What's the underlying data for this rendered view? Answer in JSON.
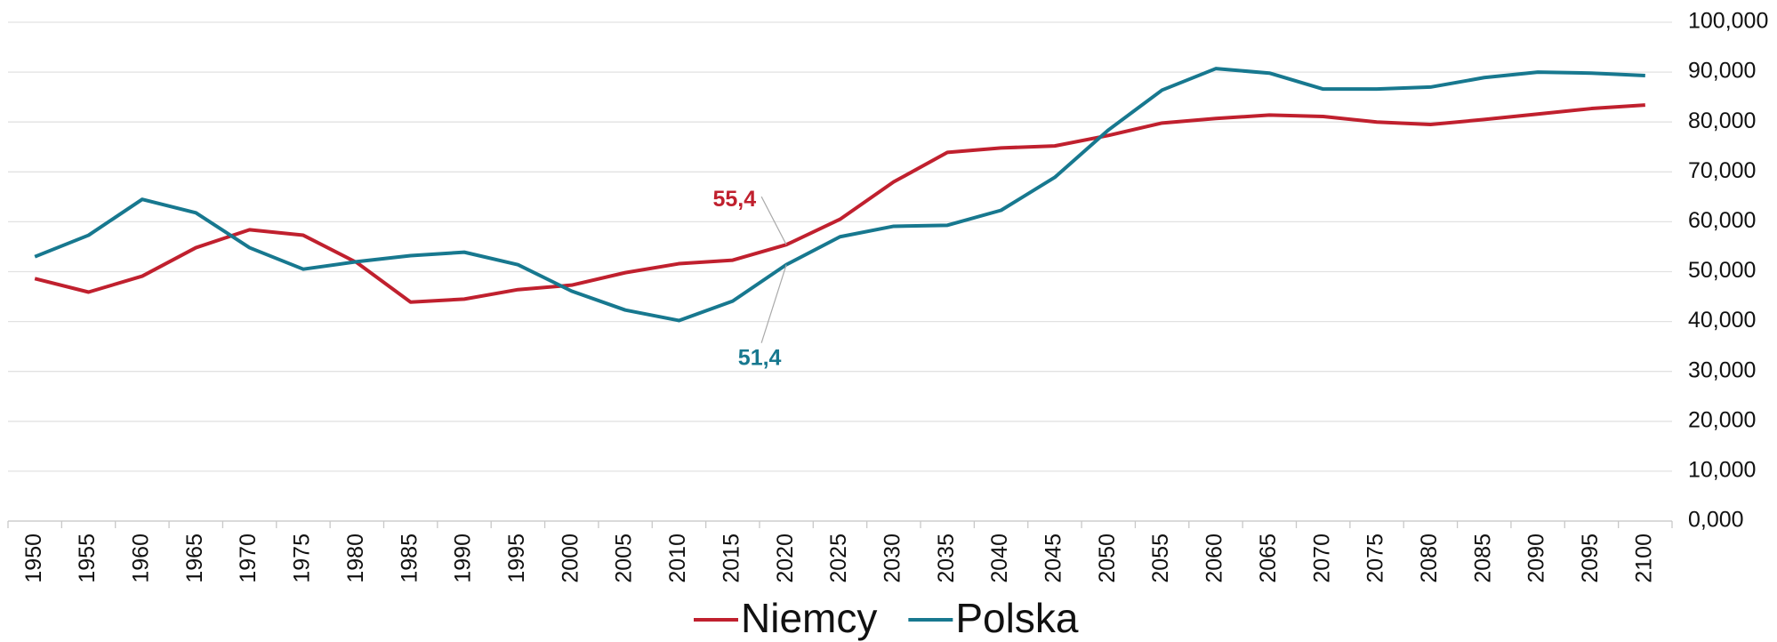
{
  "chart_data": {
    "type": "line",
    "categories": [
      1950,
      1955,
      1960,
      1965,
      1970,
      1975,
      1980,
      1985,
      1990,
      1995,
      2000,
      2005,
      2010,
      2015,
      2020,
      2025,
      2030,
      2035,
      2040,
      2045,
      2050,
      2055,
      2060,
      2065,
      2070,
      2075,
      2080,
      2085,
      2090,
      2095,
      2100
    ],
    "series": [
      {
        "name": "Niemcy",
        "color": "#c0202e",
        "values": [
          48.6,
          45.9,
          49.1,
          54.8,
          58.4,
          57.3,
          51.8,
          43.9,
          44.5,
          46.4,
          47.3,
          49.8,
          51.6,
          52.3,
          55.4,
          60.5,
          68.0,
          73.9,
          74.8,
          75.2,
          77.3,
          79.8,
          80.7,
          81.4,
          81.1,
          80.0,
          79.5,
          80.5,
          81.6,
          82.7,
          83.4
        ],
        "annotations": [
          {
            "index": 14,
            "value_label": "55,4"
          }
        ]
      },
      {
        "name": "Polska",
        "color": "#17788f",
        "values": [
          53.0,
          57.3,
          64.5,
          61.8,
          54.8,
          50.5,
          52.0,
          53.2,
          53.9,
          51.4,
          46.1,
          42.3,
          40.2,
          44.1,
          51.4,
          57.0,
          59.1,
          59.3,
          62.3,
          68.9,
          78.4,
          86.4,
          90.7,
          89.8,
          86.6,
          86.6,
          87.0,
          88.9,
          90.0,
          89.8,
          89.3
        ],
        "annotations": [
          {
            "index": 14,
            "value_label": "51,4"
          }
        ]
      }
    ],
    "ylim": [
      0,
      100
    ],
    "yticks": [
      {
        "value": 0,
        "label": "0,000"
      },
      {
        "value": 10,
        "label": "10,000"
      },
      {
        "value": 20,
        "label": "20,000"
      },
      {
        "value": 30,
        "label": "30,000"
      },
      {
        "value": 40,
        "label": "40,000"
      },
      {
        "value": 50,
        "label": "50,000"
      },
      {
        "value": 60,
        "label": "60,000"
      },
      {
        "value": 70,
        "label": "70,000"
      },
      {
        "value": 80,
        "label": "80,000"
      },
      {
        "value": 90,
        "label": "90,000"
      },
      {
        "value": 100,
        "label": "100,000"
      }
    ],
    "grid": true,
    "legend": "bottom"
  }
}
